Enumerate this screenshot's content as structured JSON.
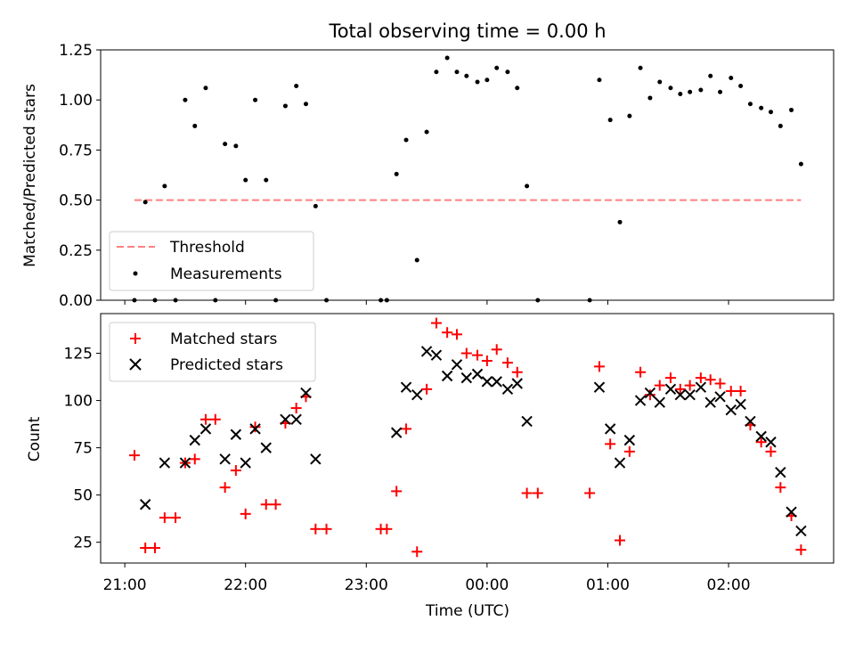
{
  "title": "Total observing time = 0.00 h",
  "colors": {
    "measurements": "#000000",
    "threshold": "#ff7f7f",
    "matched": "#ff0000",
    "predicted": "#000000"
  },
  "chart_data": [
    {
      "type": "scatter",
      "panel": "top",
      "title": "Total observing time = 0.00 h",
      "xlabel": "",
      "ylabel": "Matched/Predicted stars",
      "xlim_hours": [
        20.8,
        26.87
      ],
      "ylim": [
        0,
        1.25
      ],
      "yticks": [
        "0.00",
        "0.25",
        "0.50",
        "0.75",
        "1.00",
        "1.25"
      ],
      "legend_position": "lower-left",
      "threshold": {
        "name": "Threshold",
        "value": 0.5,
        "x_from_hours": 21.08,
        "x_to_hours": 26.6
      },
      "series": [
        {
          "name": "Measurements",
          "marker": "dot",
          "points": [
            [
              21.08,
              0.0
            ],
            [
              21.17,
              0.49
            ],
            [
              21.25,
              0.0
            ],
            [
              21.33,
              0.57
            ],
            [
              21.42,
              0.0
            ],
            [
              21.5,
              1.0
            ],
            [
              21.58,
              0.87
            ],
            [
              21.67,
              1.06
            ],
            [
              21.75,
              0.0
            ],
            [
              21.83,
              0.78
            ],
            [
              21.92,
              0.77
            ],
            [
              22.0,
              0.6
            ],
            [
              22.08,
              1.0
            ],
            [
              22.17,
              0.6
            ],
            [
              22.25,
              0.0
            ],
            [
              22.33,
              0.97
            ],
            [
              22.42,
              1.07
            ],
            [
              22.5,
              0.98
            ],
            [
              22.58,
              0.47
            ],
            [
              22.67,
              0.0
            ],
            [
              23.12,
              0.0
            ],
            [
              23.17,
              0.0
            ],
            [
              23.25,
              0.63
            ],
            [
              23.33,
              0.8
            ],
            [
              23.42,
              0.2
            ],
            [
              23.5,
              0.84
            ],
            [
              23.58,
              1.14
            ],
            [
              23.67,
              1.21
            ],
            [
              23.75,
              1.14
            ],
            [
              23.83,
              1.12
            ],
            [
              23.92,
              1.09
            ],
            [
              24.0,
              1.1
            ],
            [
              24.08,
              1.16
            ],
            [
              24.17,
              1.14
            ],
            [
              24.25,
              1.06
            ],
            [
              24.33,
              0.57
            ],
            [
              24.42,
              0.0
            ],
            [
              24.85,
              0.0
            ],
            [
              24.93,
              1.1
            ],
            [
              25.02,
              0.9
            ],
            [
              25.1,
              0.39
            ],
            [
              25.18,
              0.92
            ],
            [
              25.27,
              1.16
            ],
            [
              25.35,
              1.01
            ],
            [
              25.43,
              1.09
            ],
            [
              25.52,
              1.06
            ],
            [
              25.6,
              1.03
            ],
            [
              25.68,
              1.04
            ],
            [
              25.77,
              1.05
            ],
            [
              25.85,
              1.12
            ],
            [
              25.93,
              1.04
            ],
            [
              26.02,
              1.11
            ],
            [
              26.1,
              1.07
            ],
            [
              26.18,
              0.98
            ],
            [
              26.27,
              0.96
            ],
            [
              26.35,
              0.94
            ],
            [
              26.43,
              0.87
            ],
            [
              26.52,
              0.95
            ],
            [
              26.6,
              0.68
            ]
          ]
        }
      ]
    },
    {
      "type": "scatter",
      "panel": "bottom",
      "title": "",
      "xlabel": "Time (UTC)",
      "ylabel": "Count",
      "xlim_hours": [
        20.8,
        26.87
      ],
      "ylim": [
        14,
        146
      ],
      "yticks": [
        "25",
        "50",
        "75",
        "100",
        "125"
      ],
      "xticks": [
        "21:00",
        "22:00",
        "23:00",
        "00:00",
        "01:00",
        "02:00"
      ],
      "legend_position": "upper-left",
      "series": [
        {
          "name": "Matched stars",
          "marker": "plus",
          "points": [
            [
              21.08,
              71
            ],
            [
              21.17,
              22
            ],
            [
              21.25,
              22
            ],
            [
              21.33,
              38
            ],
            [
              21.42,
              38
            ],
            [
              21.5,
              67
            ],
            [
              21.58,
              69
            ],
            [
              21.67,
              90
            ],
            [
              21.75,
              90
            ],
            [
              21.83,
              54
            ],
            [
              21.92,
              63
            ],
            [
              22.0,
              40
            ],
            [
              22.08,
              86
            ],
            [
              22.17,
              45
            ],
            [
              22.25,
              45
            ],
            [
              22.33,
              88
            ],
            [
              22.42,
              96
            ],
            [
              22.5,
              102
            ],
            [
              22.58,
              32
            ],
            [
              22.67,
              32
            ],
            [
              23.12,
              32
            ],
            [
              23.17,
              32
            ],
            [
              23.25,
              52
            ],
            [
              23.33,
              85
            ],
            [
              23.42,
              20
            ],
            [
              23.5,
              106
            ],
            [
              23.58,
              141
            ],
            [
              23.67,
              136
            ],
            [
              23.75,
              135
            ],
            [
              23.83,
              125
            ],
            [
              23.92,
              124
            ],
            [
              24.0,
              121
            ],
            [
              24.08,
              127
            ],
            [
              24.17,
              120
            ],
            [
              24.25,
              115
            ],
            [
              24.33,
              51
            ],
            [
              24.42,
              51
            ],
            [
              24.85,
              51
            ],
            [
              24.93,
              118
            ],
            [
              25.02,
              77
            ],
            [
              25.1,
              26
            ],
            [
              25.18,
              73
            ],
            [
              25.27,
              115
            ],
            [
              25.35,
              103
            ],
            [
              25.43,
              108
            ],
            [
              25.52,
              112
            ],
            [
              25.6,
              106
            ],
            [
              25.68,
              108
            ],
            [
              25.77,
              112
            ],
            [
              25.85,
              111
            ],
            [
              25.93,
              109
            ],
            [
              26.02,
              105
            ],
            [
              26.1,
              105
            ],
            [
              26.18,
              87
            ],
            [
              26.27,
              78
            ],
            [
              26.35,
              73
            ],
            [
              26.43,
              54
            ],
            [
              26.52,
              39
            ],
            [
              26.6,
              21
            ]
          ]
        },
        {
          "name": "Predicted stars",
          "marker": "x",
          "points": [
            [
              21.17,
              45
            ],
            [
              21.33,
              67
            ],
            [
              21.5,
              67
            ],
            [
              21.58,
              79
            ],
            [
              21.67,
              85
            ],
            [
              21.83,
              69
            ],
            [
              21.92,
              82
            ],
            [
              22.0,
              67
            ],
            [
              22.08,
              85
            ],
            [
              22.17,
              75
            ],
            [
              22.33,
              90
            ],
            [
              22.42,
              90
            ],
            [
              22.5,
              104
            ],
            [
              22.58,
              69
            ],
            [
              23.33,
              107
            ],
            [
              23.42,
              103
            ],
            [
              23.25,
              83
            ],
            [
              23.5,
              126
            ],
            [
              23.58,
              124
            ],
            [
              23.67,
              113
            ],
            [
              23.75,
              119
            ],
            [
              23.83,
              112
            ],
            [
              23.92,
              114
            ],
            [
              24.0,
              110
            ],
            [
              24.08,
              110
            ],
            [
              24.17,
              106
            ],
            [
              24.25,
              109
            ],
            [
              24.33,
              89
            ],
            [
              24.93,
              107
            ],
            [
              25.02,
              85
            ],
            [
              25.1,
              67
            ],
            [
              25.18,
              79
            ],
            [
              25.27,
              100
            ],
            [
              25.35,
              104
            ],
            [
              25.43,
              99
            ],
            [
              25.52,
              106
            ],
            [
              25.6,
              103
            ],
            [
              25.68,
              103
            ],
            [
              25.77,
              107
            ],
            [
              25.85,
              99
            ],
            [
              25.93,
              102
            ],
            [
              26.02,
              95
            ],
            [
              26.1,
              98
            ],
            [
              26.18,
              89
            ],
            [
              26.27,
              81
            ],
            [
              26.35,
              78
            ],
            [
              26.43,
              62
            ],
            [
              26.52,
              41
            ],
            [
              26.6,
              31
            ]
          ]
        }
      ]
    }
  ]
}
